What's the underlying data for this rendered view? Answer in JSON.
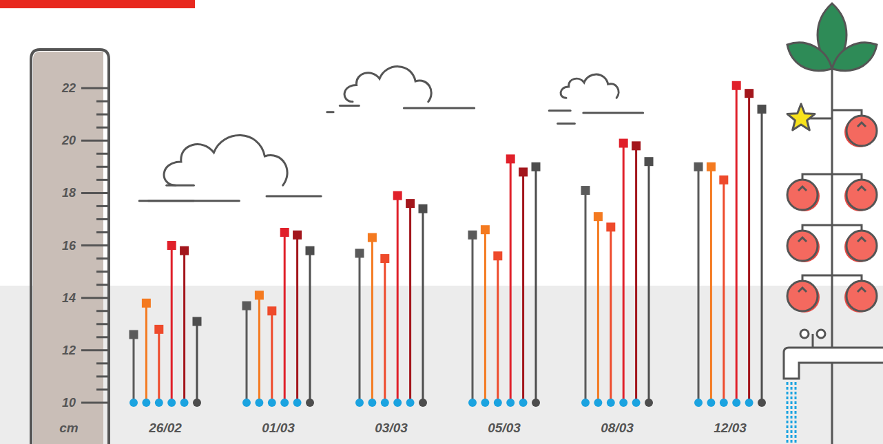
{
  "chart_data": {
    "type": "lollipop",
    "y_label": "cm",
    "categories": [
      "26/02",
      "01/03",
      "03/03",
      "05/03",
      "08/03",
      "12/03"
    ],
    "series": [
      {
        "color": "#5a5a5a",
        "values": [
          12.6,
          13.7,
          15.7,
          16.4,
          18.1,
          19.0
        ]
      },
      {
        "color": "#f47a20",
        "values": [
          13.8,
          14.1,
          16.3,
          16.6,
          17.1,
          19.0
        ]
      },
      {
        "color": "#ee4a2b",
        "values": [
          12.8,
          13.5,
          15.5,
          15.6,
          16.7,
          18.5
        ]
      },
      {
        "color": "#e0202a",
        "values": [
          16.0,
          16.5,
          17.9,
          19.3,
          19.9,
          22.1
        ]
      },
      {
        "color": "#a3161c",
        "values": [
          15.8,
          16.4,
          17.6,
          18.8,
          19.8,
          21.8
        ]
      },
      {
        "color": "#4d4d4d",
        "values": [
          13.1,
          15.8,
          17.4,
          19.0,
          19.2,
          21.2
        ]
      }
    ],
    "marker": "square",
    "ylim": [
      10,
      23
    ],
    "yticks": [
      10,
      12,
      14,
      16,
      18,
      20,
      22
    ],
    "grid": false
  }
}
